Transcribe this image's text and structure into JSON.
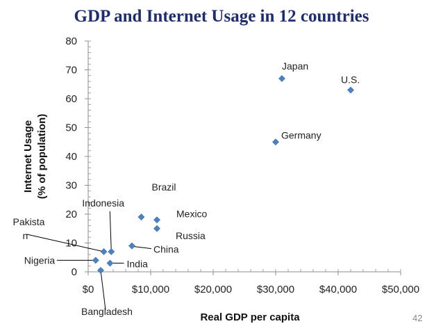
{
  "slide": {
    "title": "GDP and Internet Usage in 12 countries",
    "page_number": "42"
  },
  "chart_data": {
    "type": "scatter",
    "title": "",
    "xlabel": "Real GDP per capita",
    "ylabel_lines": [
      "Internet Usage",
      "(% of population)"
    ],
    "xlim": [
      0,
      50000
    ],
    "ylim": [
      0,
      80
    ],
    "x_ticks": [
      0,
      10000,
      20000,
      30000,
      40000,
      50000
    ],
    "x_tick_labels": [
      "$0",
      "$10,000",
      "$20,000",
      "$30,000",
      "$40,000",
      "$50,000"
    ],
    "y_ticks": [
      0,
      10,
      20,
      30,
      40,
      50,
      60,
      70,
      80
    ],
    "y_tick_labels": [
      "0",
      "10",
      "20",
      "30",
      "40",
      "50",
      "60",
      "70",
      "80"
    ],
    "grid": false,
    "marker": "diamond",
    "marker_color": "#4f81bd",
    "points": [
      {
        "label_lines": [
          "Japan"
        ],
        "x": 31000,
        "y": 67
      },
      {
        "label_lines": [
          "U.S."
        ],
        "x": 42000,
        "y": 63
      },
      {
        "label_lines": [
          "Germany"
        ],
        "x": 30000,
        "y": 45
      },
      {
        "label_lines": [
          "Brazil"
        ],
        "x": 8500,
        "y": 19
      },
      {
        "label_lines": [
          "Mexico"
        ],
        "x": 11000,
        "y": 18
      },
      {
        "label_lines": [
          "Russia"
        ],
        "x": 11000,
        "y": 15
      },
      {
        "label_lines": [
          "China"
        ],
        "x": 7000,
        "y": 9
      },
      {
        "label_lines": [
          "Indonesia"
        ],
        "x": 3700,
        "y": 7
      },
      {
        "label_lines": [
          "Pakista",
          "n"
        ],
        "x": 2500,
        "y": 7
      },
      {
        "label_lines": [
          "Nigeria"
        ],
        "x": 1200,
        "y": 4
      },
      {
        "label_lines": [
          "India"
        ],
        "x": 3500,
        "y": 3
      },
      {
        "label_lines": [
          "Bangladesh"
        ],
        "x": 2000,
        "y": 0.5
      }
    ]
  }
}
